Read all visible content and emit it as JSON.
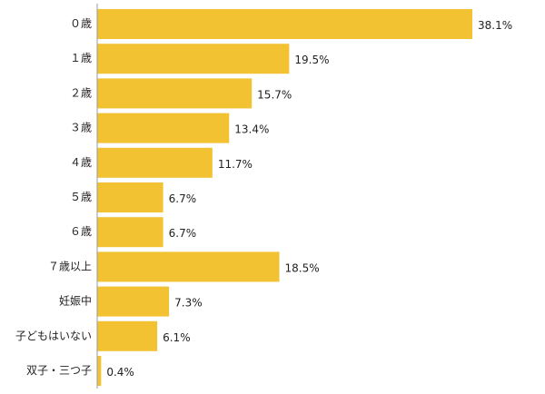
{
  "chart_data": {
    "type": "bar",
    "orientation": "horizontal",
    "categories": [
      "０歳",
      "１歳",
      "２歳",
      "３歳",
      "４歳",
      "５歳",
      "６歳",
      "７歳以上",
      "妊娠中",
      "子どもはいない",
      "双子・三つ子"
    ],
    "values": [
      38.1,
      19.5,
      15.7,
      13.4,
      11.7,
      6.7,
      6.7,
      18.5,
      7.3,
      6.1,
      0.4
    ],
    "value_labels": [
      "38.1%",
      "19.5%",
      "15.7%",
      "13.4%",
      "11.7%",
      "6.7%",
      "6.7%",
      "18.5%",
      "7.3%",
      "6.1%",
      "0.4%"
    ],
    "title": "",
    "xlabel": "",
    "ylabel": "",
    "unit": "%",
    "xlim": [
      0,
      38.1
    ],
    "grid": false,
    "legend": "none",
    "bar_color": "#F2C233",
    "axis_color": "#999999"
  }
}
